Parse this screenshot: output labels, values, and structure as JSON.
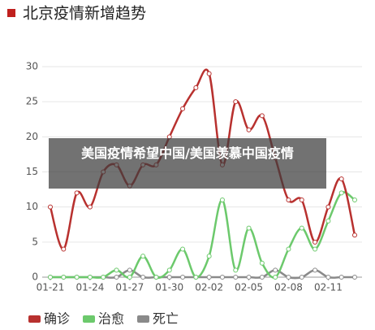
{
  "chart_data": {
    "type": "line",
    "title": "北京疫情新增趋势",
    "categories": [
      "01-21",
      null,
      null,
      "01-24",
      null,
      null,
      "01-27",
      null,
      null,
      "01-30",
      null,
      null,
      "02-02",
      null,
      null,
      "02-05",
      null,
      null,
      "02-08",
      null,
      null,
      "02-11",
      null,
      null
    ],
    "series": [
      {
        "name": "确诊",
        "color": "#b8312f",
        "values": [
          10,
          4,
          12,
          10,
          15,
          16,
          13,
          16,
          16,
          20,
          24,
          27,
          29,
          16,
          25,
          21,
          23,
          17,
          11,
          11,
          5,
          10,
          14,
          6
        ]
      },
      {
        "name": "治愈",
        "color": "#6cc96c",
        "values": [
          0,
          0,
          0,
          0,
          0,
          1,
          0,
          3,
          0,
          1,
          4,
          0,
          3,
          11,
          1,
          7,
          2,
          0,
          4,
          7,
          4,
          8,
          12,
          11
        ]
      },
      {
        "name": "死亡",
        "color": "#8a8a8a",
        "values": [
          0,
          0,
          0,
          0,
          0,
          0,
          1,
          0,
          0,
          0,
          0,
          0,
          0,
          0,
          0,
          0,
          0,
          1,
          0,
          0,
          1,
          0,
          0,
          0
        ]
      }
    ],
    "ylim": [
      0,
      30
    ],
    "yticks": [
      0,
      5,
      10,
      15,
      20,
      25,
      30
    ],
    "grid": true
  },
  "overlay": "美国疫情希望中国/美国羡慕中国疫情"
}
